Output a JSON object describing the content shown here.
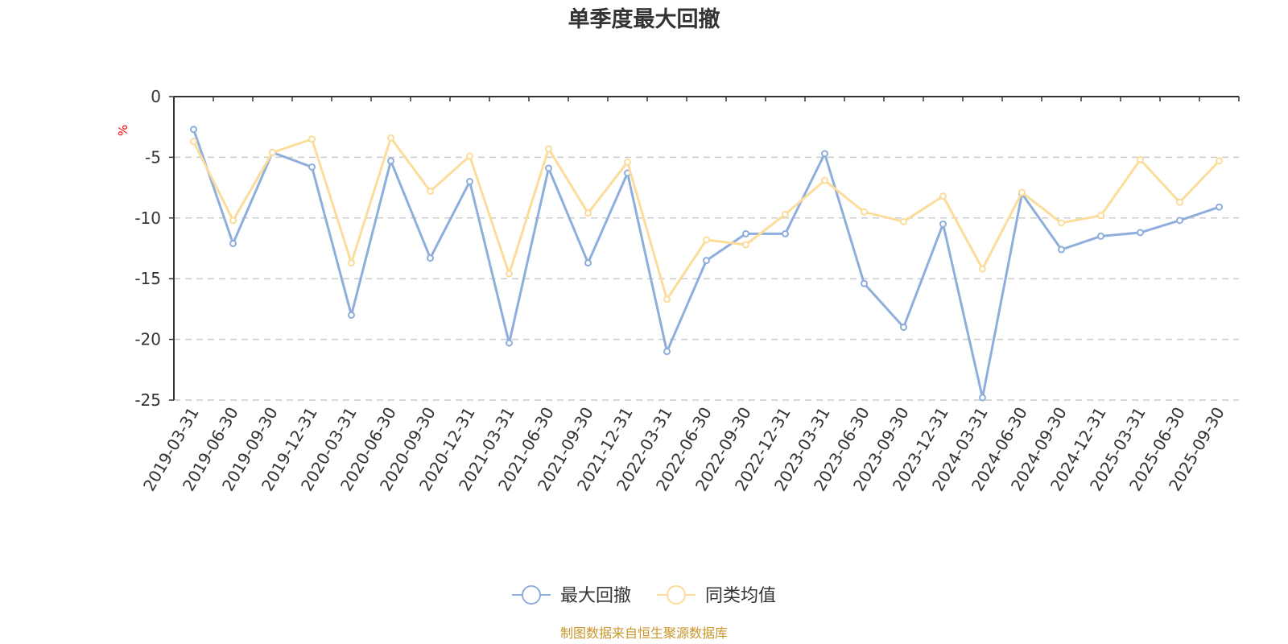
{
  "chart_data": {
    "type": "line",
    "title": "单季度最大回撤",
    "ylabel": "%",
    "ylim": [
      -25,
      0
    ],
    "yticks": [
      0,
      -5,
      -10,
      -15,
      -20,
      -25
    ],
    "grid": true,
    "legend_position": "bottom-center",
    "categories": [
      "2019-03-31",
      "2019-06-30",
      "2019-09-30",
      "2019-12-31",
      "2020-03-31",
      "2020-06-30",
      "2020-09-30",
      "2020-12-31",
      "2021-03-31",
      "2021-06-30",
      "2021-09-30",
      "2021-12-31",
      "2022-03-31",
      "2022-06-30",
      "2022-09-30",
      "2022-12-31",
      "2023-03-31",
      "2023-06-30",
      "2023-09-30",
      "2023-12-31",
      "2024-03-31",
      "2024-06-30",
      "2024-09-30",
      "2024-12-31",
      "2025-03-31",
      "2025-06-30",
      "2025-09-30"
    ],
    "series": [
      {
        "name": "最大回撤",
        "color": "#8eaedb",
        "values": [
          -2.7,
          -12.1,
          -4.6,
          -5.8,
          -18.0,
          -5.3,
          -13.3,
          -7.0,
          -20.3,
          -5.9,
          -13.7,
          -6.3,
          -21.0,
          -13.5,
          -11.3,
          -11.3,
          -4.7,
          -15.4,
          -19.0,
          -10.5,
          -24.8,
          -8.0,
          -12.6,
          -11.5,
          -11.2,
          -10.2,
          -9.1
        ]
      },
      {
        "name": "同类均值",
        "color": "#fbdc9a",
        "values": [
          -3.7,
          -10.2,
          -4.6,
          -3.5,
          -13.7,
          -3.4,
          -7.8,
          -4.9,
          -14.6,
          -4.3,
          -9.6,
          -5.4,
          -16.7,
          -11.8,
          -12.2,
          -9.7,
          -6.9,
          -9.5,
          -10.3,
          -8.2,
          -14.2,
          -7.9,
          -10.4,
          -9.8,
          -5.2,
          -8.7,
          -5.3
        ]
      }
    ],
    "source": "制图数据来自恒生聚源数据库",
    "unit_color": "#ff0000",
    "source_color": "#c8962b",
    "axis_color": "#333333",
    "grid_color": "#cccccc"
  }
}
